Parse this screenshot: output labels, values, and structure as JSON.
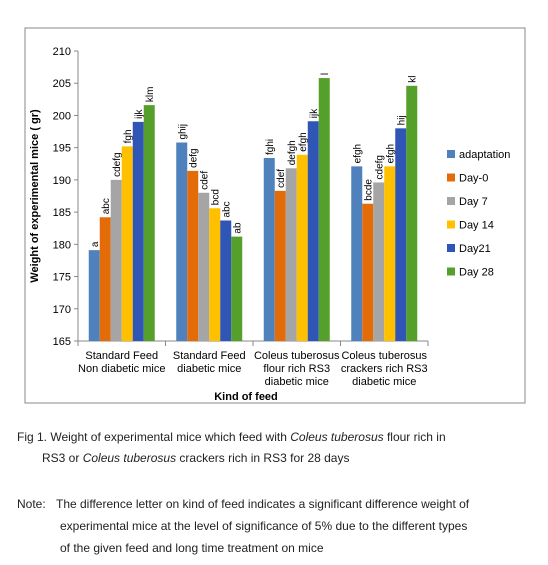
{
  "chart_data": {
    "type": "bar",
    "y_axis_title": "Weight of experimental mice ( gr)",
    "x_axis_title": "Kind of feed",
    "categories": [
      "Standard Feed\nNon diabetic mice",
      "Standard Feed\ndiabetic mice",
      "Coleus tuberosus\nflour rich RS3\ndiabetic mice",
      "Coleus tuberosus\ncrackers rich RS3\ndiabetic mice"
    ],
    "ylim": [
      165,
      210
    ],
    "yticks": [
      165,
      170,
      175,
      180,
      185,
      190,
      195,
      200,
      205,
      210
    ],
    "series": [
      {
        "name": "adaptation",
        "color": "#4f81bd",
        "values": [
          179.1,
          195.8,
          193.4,
          192.1
        ],
        "letters": [
          "a",
          "ghij",
          "fghi",
          "efgh"
        ]
      },
      {
        "name": "Day-0",
        "color": "#e36c09",
        "values": [
          184.2,
          191.4,
          188.3,
          186.3
        ],
        "letters": [
          "abc",
          "defg",
          "cdef",
          "bcde"
        ]
      },
      {
        "name": "Day 7",
        "color": "#a5a5a5",
        "values": [
          190,
          188,
          191.8,
          189.6
        ],
        "letters": [
          "cdefg",
          "cdef",
          "defgh",
          "cdefg"
        ]
      },
      {
        "name": "Day 14",
        "color": "#ffc000",
        "values": [
          195.2,
          185.6,
          193.9,
          192.1
        ],
        "letters": [
          "fgh",
          "bcd",
          "efgh",
          "efgh"
        ]
      },
      {
        "name": "Day21",
        "color": "#2f55b5",
        "values": [
          199,
          183.7,
          199.1,
          198
        ],
        "letters": [
          "ijk",
          "abc",
          "ijk",
          "hij"
        ]
      },
      {
        "name": "Day 28",
        "color": "#55a02b",
        "values": [
          201.6,
          181.2,
          205.8,
          204.6
        ],
        "letters": [
          "klm",
          "ab",
          "l",
          "kl"
        ]
      }
    ]
  },
  "caption": {
    "lines": [
      [
        {
          "text": "Fig 1. Weight of experimental mice which feed with "
        },
        {
          "text": "Coleus tuberosus",
          "italic": true
        },
        {
          "text": " flour rich in"
        }
      ],
      [
        {
          "text": "RS3 or "
        },
        {
          "text": "Coleus tuberosus",
          "italic": true
        },
        {
          "text": " crackers rich in RS3 for 28 days"
        }
      ]
    ]
  },
  "note": {
    "label": "Note:",
    "lines": [
      "The difference letter on kind of feed indicates a significant difference weight of",
      "experimental mice at the level of significance of 5% due to the different types",
      "of the given feed and long time treatment on mice"
    ]
  }
}
